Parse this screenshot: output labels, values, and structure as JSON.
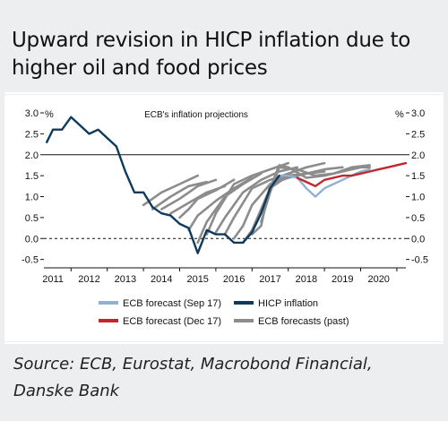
{
  "header": {
    "title": "Upward revision in HICP inflation due to higher oil and food prices"
  },
  "source_text": "Source: ECB, Eurostat, Macrobond Financial, Danske Bank",
  "colors": {
    "hicp": "#0e3a5e",
    "sep17": "#8fb1d4",
    "dec17": "#c0272d",
    "past": "#8c8c8c",
    "background": "#eceeef"
  },
  "chart_data": {
    "type": "line",
    "title": "ECB's inflation projections",
    "y_unit_left": "%",
    "y_unit_right": "%",
    "ylim": [
      -0.7,
      3.0
    ],
    "xlim": [
      2010.75,
      2020.75
    ],
    "yticks": [
      "3.0",
      "2.5",
      "2.0",
      "1.5",
      "1.0",
      "0.5",
      "0.0",
      "-0.5"
    ],
    "ytick_values": [
      3.0,
      2.5,
      2.0,
      1.5,
      1.0,
      0.5,
      0.0,
      -0.5
    ],
    "xticks": [
      "2011",
      "2012",
      "2013",
      "2014",
      "2015",
      "2016",
      "2017",
      "2018",
      "2019",
      "2020"
    ],
    "xtick_values": [
      2011,
      2012,
      2013,
      2014,
      2015,
      2016,
      2017,
      2018,
      2019,
      2020
    ],
    "reference_lines": [
      {
        "y": 2.0,
        "style": "solid"
      },
      {
        "y": 0.0,
        "style": "dashed"
      }
    ],
    "legend": [
      {
        "label": "ECB forecast (Sep 17)",
        "color": "#8fb1d4"
      },
      {
        "label": "HICP inflation",
        "color": "#0e3a5e"
      },
      {
        "label": "ECB forecast (Dec 17)",
        "color": "#c0272d"
      },
      {
        "label": "ECB forecasts (past)",
        "color": "#8c8c8c"
      }
    ],
    "series": [
      {
        "name": "HICP inflation",
        "x": [
          2010.83,
          2011.0,
          2011.25,
          2011.5,
          2011.75,
          2012.0,
          2012.25,
          2012.5,
          2012.75,
          2013.0,
          2013.25,
          2013.5,
          2013.75,
          2014.0,
          2014.25,
          2014.5,
          2014.75,
          2015.0,
          2015.25,
          2015.5,
          2015.75,
          2016.0,
          2016.25,
          2016.5,
          2016.75,
          2017.0,
          2017.25
        ],
        "y": [
          2.3,
          2.6,
          2.6,
          2.9,
          2.7,
          2.5,
          2.6,
          2.4,
          2.2,
          1.6,
          1.1,
          1.1,
          0.75,
          0.6,
          0.55,
          0.35,
          0.25,
          -0.35,
          0.2,
          0.1,
          0.1,
          -0.1,
          -0.1,
          0.15,
          0.6,
          1.2,
          1.5
        ]
      },
      {
        "name": "ECB forecast (Sep 17)",
        "x": [
          2017.25,
          2017.5,
          2017.75,
          2018.0,
          2018.25,
          2018.5,
          2018.75,
          2019.0,
          2019.25,
          2019.5,
          2019.75
        ],
        "y": [
          1.5,
          1.5,
          1.45,
          1.2,
          1.0,
          1.2,
          1.3,
          1.4,
          1.5,
          1.6,
          1.65
        ]
      },
      {
        "name": "ECB forecast (Dec 17)",
        "x": [
          2017.75,
          2018.0,
          2018.25,
          2018.5,
          2018.75,
          2019.0,
          2019.25,
          2019.5,
          2019.75,
          2020.0,
          2020.25,
          2020.5,
          2020.75
        ],
        "y": [
          1.45,
          1.35,
          1.25,
          1.4,
          1.45,
          1.5,
          1.5,
          1.55,
          1.6,
          1.65,
          1.7,
          1.75,
          1.8
        ]
      }
    ],
    "past_forecasts": [
      {
        "x": [
          2013.5,
          2014.0,
          2014.5,
          2015.0
        ],
        "y": [
          0.8,
          1.1,
          1.3,
          1.5
        ]
      },
      {
        "x": [
          2013.75,
          2014.25,
          2014.75,
          2015.25
        ],
        "y": [
          0.7,
          1.0,
          1.25,
          1.35
        ]
      },
      {
        "x": [
          2014.0,
          2014.5,
          2015.0,
          2015.5
        ],
        "y": [
          0.7,
          0.95,
          1.25,
          1.4
        ]
      },
      {
        "x": [
          2014.25,
          2014.75,
          2015.25,
          2015.75
        ],
        "y": [
          0.6,
          0.85,
          1.1,
          1.25
        ]
      },
      {
        "x": [
          2014.5,
          2014.75,
          2015.0,
          2015.5,
          2016.0
        ],
        "y": [
          0.5,
          0.7,
          0.95,
          1.15,
          1.4
        ]
      },
      {
        "x": [
          2014.75,
          2015.0,
          2015.5,
          2016.0,
          2016.5
        ],
        "y": [
          0.2,
          0.55,
          0.9,
          1.2,
          1.45
        ]
      },
      {
        "x": [
          2015.0,
          2015.25,
          2015.75,
          2016.25,
          2016.75
        ],
        "y": [
          -0.1,
          0.4,
          1.0,
          1.3,
          1.55
        ]
      },
      {
        "x": [
          2015.25,
          2015.5,
          2016.0,
          2016.5,
          2017.0,
          2017.5
        ],
        "y": [
          0.1,
          0.6,
          1.3,
          1.5,
          1.65,
          1.8
        ]
      },
      {
        "x": [
          2015.5,
          2015.75,
          2016.25,
          2016.75,
          2017.25,
          2017.75
        ],
        "y": [
          0.15,
          0.5,
          1.1,
          1.4,
          1.6,
          1.7
        ]
      },
      {
        "x": [
          2015.75,
          2016.0,
          2016.5,
          2017.0,
          2017.5,
          2018.0
        ],
        "y": [
          0.1,
          0.5,
          1.2,
          1.4,
          1.55,
          1.7
        ]
      },
      {
        "x": [
          2016.0,
          2016.25,
          2016.5,
          2017.0,
          2017.5,
          2018.0,
          2018.5
        ],
        "y": [
          0.0,
          0.3,
          0.8,
          1.3,
          1.55,
          1.7,
          1.8
        ]
      },
      {
        "x": [
          2016.25,
          2016.5,
          2017.0,
          2017.5,
          2018.0,
          2018.5
        ],
        "y": [
          -0.1,
          0.2,
          1.2,
          1.5,
          1.55,
          1.6
        ]
      },
      {
        "x": [
          2016.5,
          2016.75,
          2017.0,
          2017.5,
          2018.0,
          2018.5,
          2019.0
        ],
        "y": [
          0.1,
          0.3,
          1.3,
          1.45,
          1.55,
          1.65,
          1.7
        ]
      },
      {
        "x": [
          2016.75,
          2017.0,
          2017.25,
          2017.75,
          2018.25,
          2018.75,
          2019.25,
          2019.75
        ],
        "y": [
          0.4,
          1.1,
          1.7,
          1.65,
          1.5,
          1.55,
          1.7,
          1.75
        ]
      },
      {
        "x": [
          2017.0,
          2017.25,
          2017.5,
          2018.0,
          2018.5,
          2019.0,
          2019.5,
          2019.75
        ],
        "y": [
          1.2,
          1.75,
          1.7,
          1.45,
          1.5,
          1.6,
          1.7,
          1.7
        ]
      }
    ]
  }
}
